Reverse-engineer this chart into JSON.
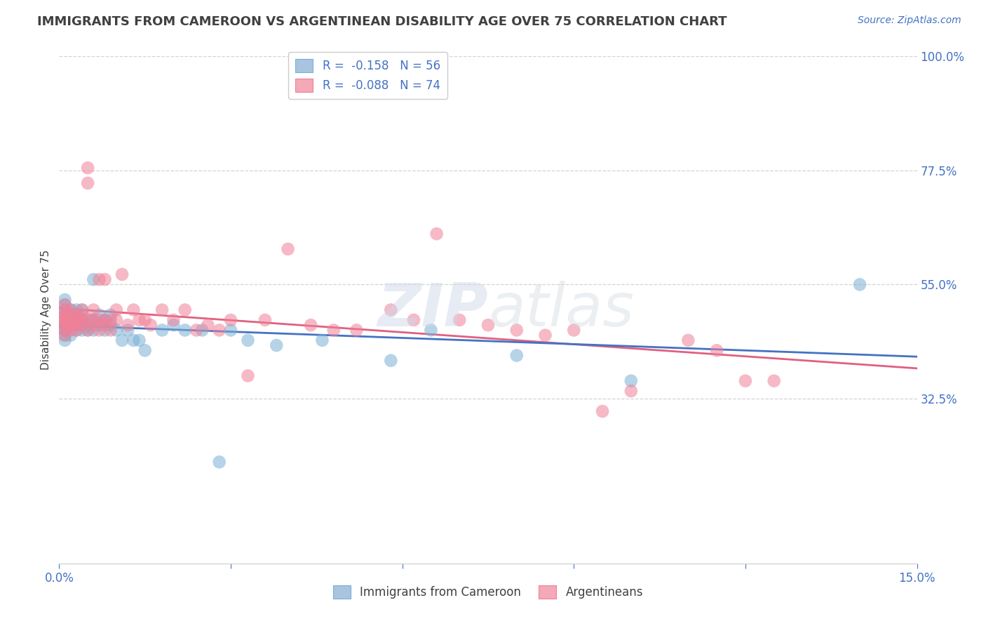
{
  "title": "IMMIGRANTS FROM CAMEROON VS ARGENTINEAN DISABILITY AGE OVER 75 CORRELATION CHART",
  "source": "Source: ZipAtlas.com",
  "ylabel": "Disability Age Over 75",
  "xlim": [
    0.0,
    0.15
  ],
  "ylim": [
    0.0,
    1.0
  ],
  "yticks": [
    0.325,
    0.55,
    0.775,
    1.0
  ],
  "ytick_labels": [
    "32.5%",
    "55.0%",
    "77.5%",
    "100.0%"
  ],
  "xticks": [
    0.0,
    0.03,
    0.06,
    0.09,
    0.12,
    0.15
  ],
  "xtick_labels": [
    "0.0%",
    "",
    "",
    "",
    "",
    "15.0%"
  ],
  "series1_color": "#7bafd4",
  "series2_color": "#f08098",
  "trendline1_color": "#4472c4",
  "trendline2_color": "#e06080",
  "background_color": "#ffffff",
  "grid_color": "#c8c8c8",
  "cameroon_x": [
    0.001,
    0.001,
    0.001,
    0.001,
    0.001,
    0.001,
    0.001,
    0.001,
    0.001,
    0.001,
    0.002,
    0.002,
    0.002,
    0.002,
    0.002,
    0.003,
    0.003,
    0.003,
    0.003,
    0.003,
    0.004,
    0.004,
    0.004,
    0.004,
    0.005,
    0.005,
    0.005,
    0.006,
    0.006,
    0.006,
    0.007,
    0.007,
    0.008,
    0.008,
    0.009,
    0.009,
    0.01,
    0.011,
    0.012,
    0.013,
    0.014,
    0.015,
    0.018,
    0.02,
    0.022,
    0.025,
    0.028,
    0.03,
    0.033,
    0.038,
    0.046,
    0.058,
    0.065,
    0.08,
    0.1,
    0.14
  ],
  "cameroon_y": [
    0.48,
    0.5,
    0.47,
    0.46,
    0.49,
    0.51,
    0.45,
    0.44,
    0.52,
    0.46,
    0.47,
    0.48,
    0.45,
    0.49,
    0.5,
    0.46,
    0.48,
    0.47,
    0.5,
    0.49,
    0.47,
    0.46,
    0.48,
    0.5,
    0.47,
    0.46,
    0.48,
    0.56,
    0.48,
    0.46,
    0.47,
    0.49,
    0.46,
    0.48,
    0.47,
    0.49,
    0.46,
    0.44,
    0.46,
    0.44,
    0.44,
    0.42,
    0.46,
    0.47,
    0.46,
    0.46,
    0.2,
    0.46,
    0.44,
    0.43,
    0.44,
    0.4,
    0.46,
    0.41,
    0.36,
    0.55
  ],
  "argentina_x": [
    0.001,
    0.001,
    0.001,
    0.001,
    0.001,
    0.001,
    0.001,
    0.001,
    0.001,
    0.001,
    0.002,
    0.002,
    0.002,
    0.002,
    0.002,
    0.003,
    0.003,
    0.003,
    0.003,
    0.003,
    0.004,
    0.004,
    0.004,
    0.004,
    0.005,
    0.005,
    0.005,
    0.005,
    0.006,
    0.006,
    0.006,
    0.007,
    0.007,
    0.007,
    0.008,
    0.008,
    0.008,
    0.009,
    0.009,
    0.01,
    0.01,
    0.011,
    0.012,
    0.013,
    0.014,
    0.015,
    0.016,
    0.018,
    0.02,
    0.022,
    0.024,
    0.026,
    0.028,
    0.03,
    0.033,
    0.036,
    0.04,
    0.044,
    0.048,
    0.052,
    0.058,
    0.062,
    0.066,
    0.07,
    0.075,
    0.08,
    0.085,
    0.09,
    0.095,
    0.1,
    0.11,
    0.115,
    0.12,
    0.125
  ],
  "argentina_y": [
    0.48,
    0.5,
    0.47,
    0.49,
    0.46,
    0.51,
    0.48,
    0.45,
    0.47,
    0.49,
    0.48,
    0.5,
    0.47,
    0.49,
    0.46,
    0.48,
    0.47,
    0.49,
    0.46,
    0.48,
    0.47,
    0.49,
    0.48,
    0.5,
    0.75,
    0.78,
    0.48,
    0.46,
    0.48,
    0.5,
    0.47,
    0.48,
    0.56,
    0.46,
    0.56,
    0.48,
    0.47,
    0.48,
    0.46,
    0.48,
    0.5,
    0.57,
    0.47,
    0.5,
    0.48,
    0.48,
    0.47,
    0.5,
    0.48,
    0.5,
    0.46,
    0.47,
    0.46,
    0.48,
    0.37,
    0.48,
    0.62,
    0.47,
    0.46,
    0.46,
    0.5,
    0.48,
    0.65,
    0.48,
    0.47,
    0.46,
    0.45,
    0.46,
    0.3,
    0.34,
    0.44,
    0.42,
    0.36,
    0.36
  ]
}
